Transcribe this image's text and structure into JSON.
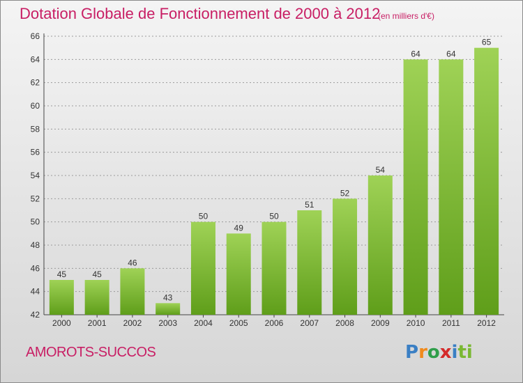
{
  "title": "Dotation Globale de Fonctionnement de 2000 à 2012",
  "subtitle": "(en milliers d'€)",
  "commune": "AMOROTS-SUCCOS",
  "logo": [
    "P",
    "r",
    "o",
    "x",
    "i",
    "ti"
  ],
  "colors": {
    "title": "#c81e64",
    "bar_top": "#9fd256",
    "bar_bottom": "#5f9e1a",
    "grid": "#9a9a9a"
  },
  "chart_data": {
    "type": "bar",
    "categories": [
      "2000",
      "2001",
      "2002",
      "2003",
      "2004",
      "2005",
      "2006",
      "2007",
      "2008",
      "2009",
      "2010",
      "2011",
      "2012"
    ],
    "values": [
      45,
      45,
      46,
      43,
      50,
      49,
      50,
      51,
      52,
      54,
      64,
      64,
      65
    ],
    "ylim": [
      42,
      66
    ],
    "yticks": [
      42,
      44,
      46,
      48,
      50,
      52,
      54,
      56,
      58,
      60,
      62,
      64,
      66
    ],
    "grid": true
  }
}
